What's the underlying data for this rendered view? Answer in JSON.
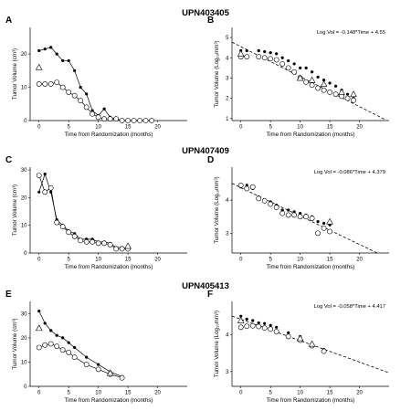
{
  "chart_data": [
    {
      "panel": "A",
      "row_title": "UPN403405",
      "type": "line",
      "xlabel": "Time from Randomization (months)",
      "ylabel": "Tumor Volume (cm³)",
      "xlim": [
        -1.5,
        25
      ],
      "ylim": [
        0,
        28
      ],
      "xticks": [
        "0",
        "5",
        "10",
        "15",
        "20"
      ],
      "yticks": [
        "0",
        "10",
        "20"
      ],
      "ytick_values": [
        0,
        10,
        20
      ],
      "series": [
        {
          "marker": "dot",
          "line": true,
          "x": [
            0,
            1,
            2,
            3,
            4,
            5,
            6,
            7,
            8,
            9,
            10,
            11,
            12,
            13,
            14,
            15,
            16,
            17,
            18,
            19
          ],
          "y": [
            21,
            21.5,
            22,
            20,
            18,
            18,
            15,
            10,
            8,
            3,
            1.5,
            3.5,
            1,
            0.5,
            0,
            0,
            0,
            0,
            0,
            0
          ]
        },
        {
          "marker": "circle",
          "line": true,
          "x": [
            0,
            1,
            2,
            3,
            4,
            5,
            6,
            7,
            8,
            9,
            10,
            11,
            12,
            13,
            14,
            15,
            16,
            17,
            18,
            19
          ],
          "y": [
            11,
            11,
            11,
            11.5,
            10,
            8.5,
            7.5,
            6,
            4,
            2,
            1,
            0.5,
            0.5,
            0.5,
            0,
            0,
            0,
            0,
            0,
            0
          ]
        },
        {
          "marker": "triangle",
          "line": false,
          "x": [
            0
          ],
          "y": [
            16
          ]
        }
      ]
    },
    {
      "panel": "B",
      "type": "scatter",
      "xlabel": "Time from Randomization (months)",
      "ylabel": "Tumor Volume (Log₁₀mm³)",
      "equation": "Log Vol = -0.148*Time + 4.55",
      "fit": {
        "slope": -0.148,
        "intercept": 4.55
      },
      "xlim": [
        -1.5,
        25
      ],
      "ylim": [
        0.9,
        5.5
      ],
      "xticks": [
        "0",
        "5",
        "10",
        "15",
        "20"
      ],
      "yticks": [
        "1",
        "2",
        "3",
        "4",
        "5"
      ],
      "ytick_values": [
        1,
        2,
        3,
        4,
        5
      ],
      "series": [
        {
          "marker": "dot",
          "x": [
            0,
            1,
            3,
            4,
            5,
            6,
            7,
            8,
            9,
            10,
            11,
            12,
            13,
            14,
            15,
            16,
            17,
            18,
            19
          ],
          "y": [
            4.35,
            4.35,
            4.35,
            4.3,
            4.25,
            4.2,
            4.0,
            3.85,
            3.7,
            3.5,
            3.5,
            3.3,
            3.05,
            2.9,
            2.75,
            2.6,
            2.4,
            2.2,
            2.0
          ]
        },
        {
          "marker": "circle",
          "x": [
            0,
            1,
            3,
            4,
            5,
            6,
            7,
            8,
            9,
            10,
            11,
            12,
            13,
            14,
            15,
            16,
            17,
            18,
            19
          ],
          "y": [
            4.05,
            4.05,
            4.05,
            4.0,
            3.95,
            3.9,
            3.7,
            3.5,
            3.3,
            3.0,
            2.8,
            2.65,
            2.5,
            2.4,
            2.3,
            2.2,
            2.1,
            2.0,
            1.9
          ]
        },
        {
          "marker": "triangle",
          "x": [
            0,
            10,
            12,
            14,
            17,
            19
          ],
          "y": [
            4.2,
            3.0,
            2.9,
            2.7,
            2.3,
            2.2
          ]
        }
      ]
    },
    {
      "panel": "C",
      "row_title": "UPN407409",
      "type": "line",
      "xlabel": "Time from Randomization (months)",
      "ylabel": "Tumor Volume (cm³)",
      "xlim": [
        -1.5,
        25
      ],
      "ylim": [
        0,
        31
      ],
      "xticks": [
        "0",
        "5",
        "10",
        "15",
        "20"
      ],
      "yticks": [
        "0",
        "10",
        "20",
        "30"
      ],
      "ytick_values": [
        0,
        10,
        20,
        30
      ],
      "series": [
        {
          "marker": "dot",
          "line": true,
          "x": [
            0,
            1,
            2,
            3,
            4,
            5,
            6,
            7,
            8,
            9,
            10,
            11,
            12,
            13,
            14,
            15
          ],
          "y": [
            22,
            28.5,
            22,
            12,
            10,
            8,
            7,
            5,
            5,
            5,
            4,
            4,
            3.5,
            2,
            2,
            1.5
          ]
        },
        {
          "marker": "circle",
          "line": true,
          "x": [
            0,
            1,
            2,
            3,
            4,
            5,
            6,
            7,
            8,
            9,
            10,
            11,
            12,
            13,
            14,
            15
          ],
          "y": [
            28,
            22,
            23.5,
            11,
            9.5,
            7.5,
            6,
            4.5,
            4,
            4,
            3.5,
            3.5,
            3,
            1.5,
            1.5,
            1.5
          ]
        },
        {
          "marker": "triangle",
          "line": false,
          "x": [
            15
          ],
          "y": [
            2.5
          ]
        }
      ]
    },
    {
      "panel": "D",
      "type": "scatter",
      "xlabel": "Time from Randomization (months)",
      "ylabel": "Tumor Volume (Log₁₀mm³)",
      "equation": "Log Vol = -0.086*Time + 4.379",
      "fit": {
        "slope": -0.086,
        "intercept": 4.379
      },
      "xlim": [
        -1.5,
        25
      ],
      "ylim": [
        2.4,
        5.0
      ],
      "xticks": [
        "0",
        "5",
        "10",
        "15",
        "20"
      ],
      "yticks": [
        "3",
        "4"
      ],
      "ytick_values": [
        3,
        4
      ],
      "series": [
        {
          "marker": "dot",
          "x": [
            0,
            1,
            2,
            3,
            4,
            5,
            6,
            7,
            8,
            9,
            10,
            11,
            12,
            13,
            14,
            15
          ],
          "y": [
            4.4,
            4.45,
            4.35,
            4.1,
            4.0,
            3.95,
            3.85,
            3.7,
            3.7,
            3.65,
            3.6,
            3.55,
            3.5,
            3.35,
            3.3,
            3.25
          ]
        },
        {
          "marker": "circle",
          "x": [
            0,
            1,
            2,
            3,
            4,
            5,
            6,
            7,
            8,
            9,
            10,
            11,
            12,
            13,
            14,
            15
          ],
          "y": [
            4.45,
            4.35,
            4.4,
            4.05,
            3.98,
            3.88,
            3.78,
            3.6,
            3.55,
            3.55,
            3.5,
            3.5,
            3.45,
            3.0,
            3.15,
            3.05
          ]
        },
        {
          "marker": "triangle",
          "x": [
            15
          ],
          "y": [
            3.35
          ]
        }
      ]
    },
    {
      "panel": "E",
      "row_title": "UPN405413",
      "type": "line",
      "xlabel": "Time from Randomization (months)",
      "ylabel": "Tumor Volume (cm³)",
      "xlim": [
        -1.5,
        25
      ],
      "ylim": [
        0,
        35
      ],
      "xticks": [
        "0",
        "5",
        "10",
        "15",
        "20"
      ],
      "yticks": [
        "0",
        "10",
        "20",
        "30"
      ],
      "ytick_values": [
        0,
        10,
        20,
        30
      ],
      "series": [
        {
          "marker": "dot",
          "line": true,
          "x": [
            0,
            1,
            2,
            3,
            4,
            5,
            6,
            8,
            10,
            12,
            14
          ],
          "y": [
            31,
            26,
            23,
            21,
            20,
            18,
            16,
            12,
            9,
            6,
            4
          ]
        },
        {
          "marker": "circle",
          "line": true,
          "x": [
            0,
            1,
            2,
            3,
            4,
            5,
            6,
            8,
            10,
            12,
            14
          ],
          "y": [
            16,
            17,
            17.5,
            16.5,
            15,
            14,
            12,
            9,
            7,
            5,
            3.5
          ]
        },
        {
          "marker": "triangle",
          "line": false,
          "x": [
            0,
            12
          ],
          "y": [
            24,
            5.5
          ]
        }
      ]
    },
    {
      "panel": "F",
      "type": "scatter",
      "xlabel": "Time from Randomization (months)",
      "ylabel": "Tumor Volume (Log₁₀mm³)",
      "equation": "Log Vol = -0.058*Time + 4.417",
      "fit": {
        "slope": -0.058,
        "intercept": 4.417
      },
      "xlim": [
        -1.5,
        25
      ],
      "ylim": [
        2.6,
        4.9
      ],
      "xticks": [
        "0",
        "5",
        "10",
        "15",
        "20"
      ],
      "yticks": [
        "3",
        "4"
      ],
      "ytick_values": [
        3,
        4
      ],
      "series": [
        {
          "marker": "dot",
          "x": [
            0,
            1,
            2,
            3,
            4,
            5,
            6,
            8,
            10,
            12,
            14
          ],
          "y": [
            4.5,
            4.42,
            4.38,
            4.32,
            4.3,
            4.25,
            4.2,
            4.05,
            3.95,
            3.75,
            3.6
          ]
        },
        {
          "marker": "circle",
          "x": [
            0,
            1,
            2,
            3,
            4,
            5,
            6,
            8,
            10,
            12,
            14
          ],
          "y": [
            4.2,
            4.23,
            4.24,
            4.22,
            4.18,
            4.15,
            4.08,
            3.95,
            3.85,
            3.7,
            3.55
          ]
        },
        {
          "marker": "triangle",
          "x": [
            0,
            10,
            12
          ],
          "y": [
            4.38,
            3.9,
            3.75
          ]
        }
      ]
    }
  ]
}
